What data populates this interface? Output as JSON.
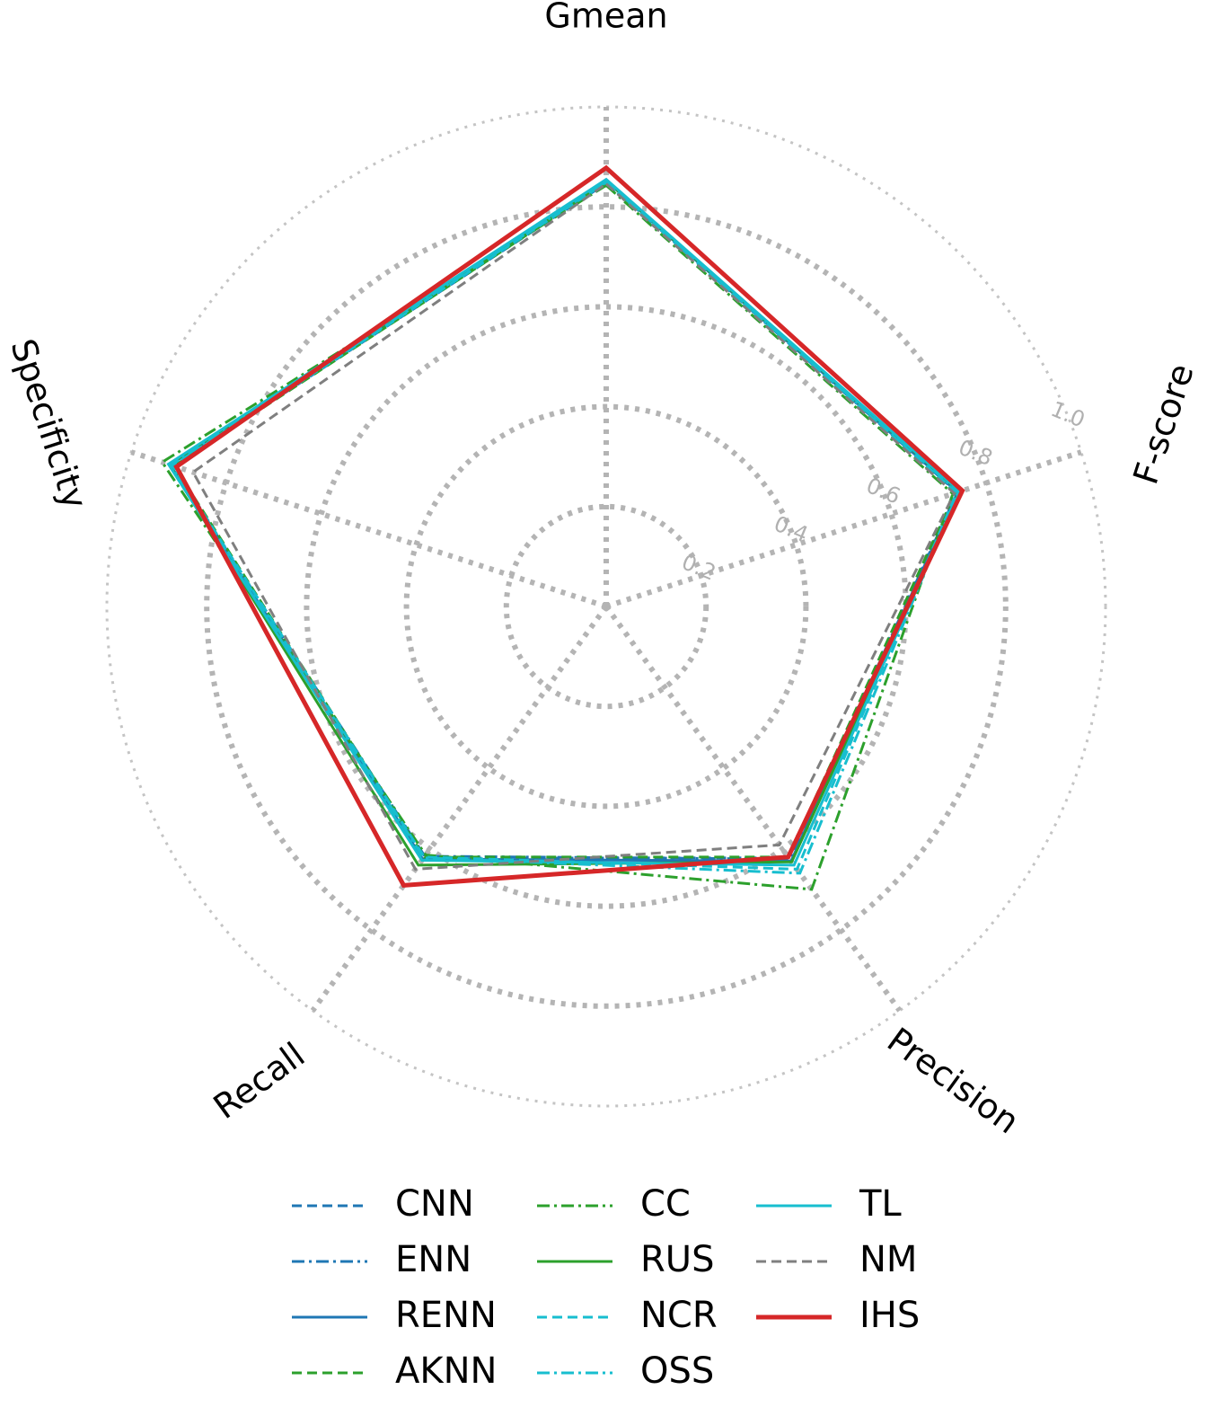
{
  "chart_data": {
    "type": "radar",
    "axes": [
      "Gmean",
      "F-score",
      "Precision",
      "Recall",
      "Specificity"
    ],
    "rlim": [
      0,
      1.0
    ],
    "rticks": [
      "0.2",
      "0.4",
      "0.6",
      "0.8",
      "1.0"
    ],
    "rtick_values": [
      0.2,
      0.4,
      0.6,
      0.8,
      1.0
    ],
    "grid": true,
    "legend_position": "bottom",
    "series": [
      {
        "name": "CNN",
        "color": "#1f77b4",
        "style": "dashed",
        "values": [
          0.847,
          0.737,
          0.622,
          0.623,
          0.912
        ]
      },
      {
        "name": "ENN",
        "color": "#1f77b4",
        "style": "dashdot",
        "values": [
          0.85,
          0.739,
          0.625,
          0.618,
          0.915
        ]
      },
      {
        "name": "RENN",
        "color": "#1f77b4",
        "style": "solid",
        "values": [
          0.852,
          0.74,
          0.63,
          0.625,
          0.918
        ]
      },
      {
        "name": "AKNN",
        "color": "#2ca02c",
        "style": "dashed",
        "values": [
          0.848,
          0.735,
          0.62,
          0.62,
          0.91
        ]
      },
      {
        "name": "CC",
        "color": "#2ca02c",
        "style": "dashdot",
        "values": [
          0.843,
          0.73,
          0.7,
          0.615,
          0.935
        ]
      },
      {
        "name": "RUS",
        "color": "#2ca02c",
        "style": "solid",
        "values": [
          0.853,
          0.744,
          0.632,
          0.64,
          0.92
        ]
      },
      {
        "name": "NCR",
        "color": "#17becf",
        "style": "dashed",
        "values": [
          0.849,
          0.738,
          0.65,
          0.62,
          0.913
        ]
      },
      {
        "name": "OSS",
        "color": "#17becf",
        "style": "dashdot",
        "values": [
          0.851,
          0.741,
          0.66,
          0.622,
          0.916
        ]
      },
      {
        "name": "TL",
        "color": "#17becf",
        "style": "solid",
        "values": [
          0.855,
          0.745,
          0.64,
          0.628,
          0.922
        ]
      },
      {
        "name": "NM",
        "color": "#7f7f7f",
        "style": "dashed",
        "values": [
          0.846,
          0.733,
          0.59,
          0.65,
          0.87
        ]
      },
      {
        "name": "IHS",
        "color": "#d62728",
        "style": "solid",
        "values": [
          0.878,
          0.75,
          0.62,
          0.69,
          0.905
        ]
      }
    ]
  }
}
